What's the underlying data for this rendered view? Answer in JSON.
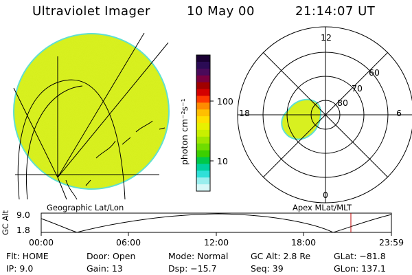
{
  "header": {
    "instrument": "Ultraviolet Imager",
    "date": "10 May 00",
    "time": "21:14:07 UT"
  },
  "colorbar": {
    "unit_label": "photon cm⁻²s⁻¹",
    "tick_100": "100",
    "tick_10": "10",
    "colors": [
      "#1a0033",
      "#2b0b55",
      "#4a0a5a",
      "#7a0040",
      "#a00000",
      "#d40000",
      "#ff3a00",
      "#ff8c00",
      "#ffbf00",
      "#ffe000",
      "#e8f000",
      "#c8ef00",
      "#9ee600",
      "#6fdc00",
      "#3ccf00",
      "#00c84a",
      "#00d0a0",
      "#30e0d8",
      "#9aeeee",
      "#d8f8f8"
    ]
  },
  "left_panel": {
    "projection_label": "Geographic Lat/Lon",
    "disk_color": "#d8f020",
    "rim_color": "#60e0d0"
  },
  "right_panel": {
    "projection_label": "Apex MLat/MLT",
    "mlt_top": "12",
    "mlt_bottom": "0",
    "mlt_left": "18",
    "mlt_right": "6",
    "lat_60": "60",
    "lat_70": "70",
    "lat_80": "80",
    "aurora_color": "#d8f020"
  },
  "altitude_plot": {
    "axis_title": "GC Alt",
    "y_max": "9.0",
    "y_min": "1.8",
    "x_ticks": [
      "00:00",
      "06:00",
      "12:00",
      "18:00",
      "23:59"
    ],
    "current_time_color": "#c00000"
  },
  "status": {
    "flt": "Flt: HOME",
    "ip": "IP:  9.0",
    "door": "Door: Open",
    "gain": "Gain: 13",
    "mode": "Mode: Normal",
    "dsp": "Dsp:  −15.7",
    "gc_alt": "GC Alt: 2.8 Re",
    "seq": "Seq: 39",
    "glat": "GLat: −81.8",
    "glon": "GLon: 137.1"
  }
}
